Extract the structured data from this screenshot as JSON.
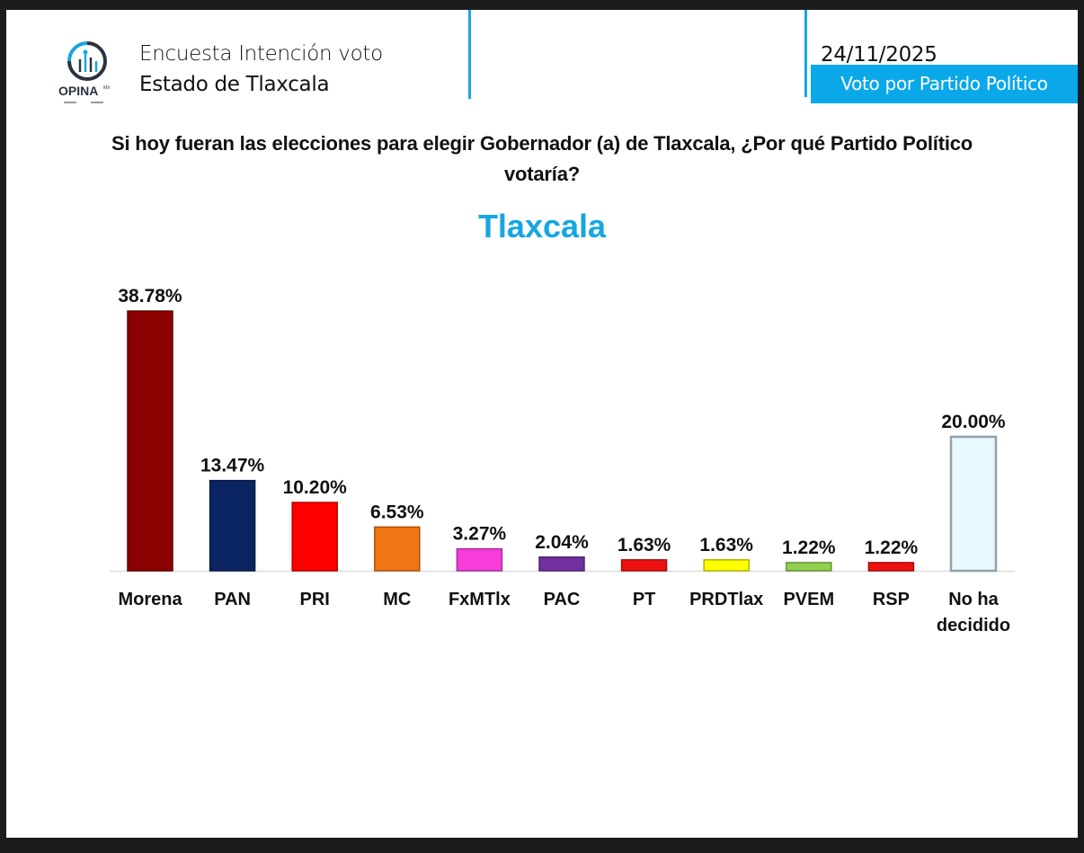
{
  "header": {
    "logo_text": "OPINA",
    "logo_suffix": "MX",
    "line1": "Encuesta Intención voto",
    "line2": "Estado de Tlaxcala",
    "date": "24/11/2025",
    "section_badge": "Voto por Partido Político"
  },
  "colors": {
    "accent": "#0aa8e8",
    "frame": "#1c1c1e"
  },
  "question": "Si hoy fueran las elecciones para elegir Gobernador (a) de Tlaxcala, ¿Por qué Partido Político votaría?",
  "chart_data": {
    "type": "bar",
    "title": "Tlaxcala",
    "xlabel": "",
    "ylabel": "",
    "ylim": [
      0,
      40
    ],
    "grid": false,
    "legend": "none",
    "categories": [
      "Morena",
      "PAN",
      "PRI",
      "MC",
      "FxMTlx",
      "PAC",
      "PT",
      "PRDTlax",
      "PVEM",
      "RSP",
      "No ha decidido"
    ],
    "category_lines": [
      [
        "Morena"
      ],
      [
        "PAN"
      ],
      [
        "PRI"
      ],
      [
        "MC"
      ],
      [
        "FxMTlx"
      ],
      [
        "PAC"
      ],
      [
        "PT"
      ],
      [
        "PRDTlax"
      ],
      [
        "PVEM"
      ],
      [
        "RSP"
      ],
      [
        "No ha",
        "decidido"
      ]
    ],
    "values": [
      38.78,
      13.47,
      10.2,
      6.53,
      3.27,
      2.04,
      1.63,
      1.63,
      1.22,
      1.22,
      20.0
    ],
    "value_labels": [
      "38.78%",
      "13.47%",
      "10.20%",
      "6.53%",
      "3.27%",
      "2.04%",
      "1.63%",
      "1.63%",
      "1.22%",
      "1.22%",
      "20.00%"
    ],
    "colors": [
      "#8b0000",
      "#0a2461",
      "#ff0000",
      "#f07514",
      "#f63ddc",
      "#7030a0",
      "#ee1111",
      "#ffff00",
      "#92d050",
      "#ee1111",
      "#e8f9ff"
    ]
  }
}
